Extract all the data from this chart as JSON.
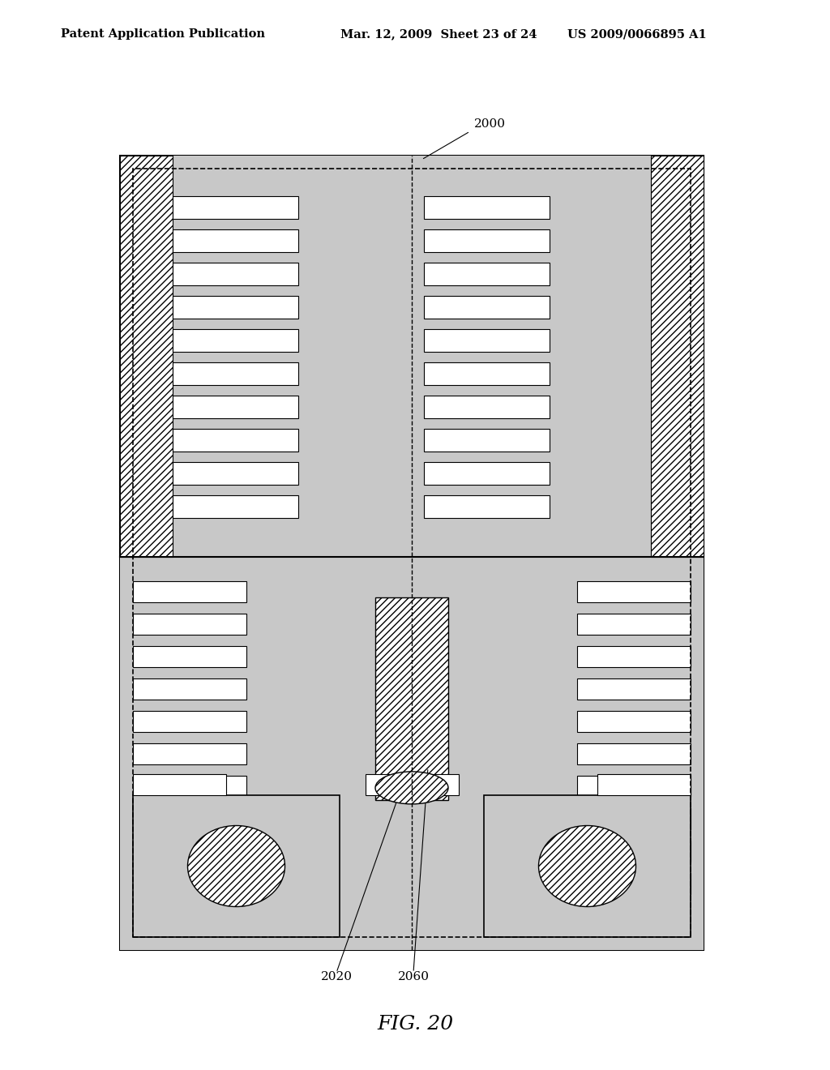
{
  "title_left": "Patent Application Publication",
  "title_mid": "Mar. 12, 2009  Sheet 23 of 24",
  "title_right": "US 2009/0066895 A1",
  "fig_label": "FIG. 20",
  "label_2000": "2000",
  "label_2020": "2020",
  "label_2060": "2060",
  "bg_color": "#ffffff",
  "dot_fill": "#c8c8c8",
  "line_color": "#000000"
}
